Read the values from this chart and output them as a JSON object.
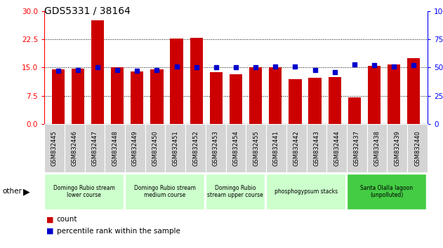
{
  "title": "GDS5331 / 38164",
  "samples": [
    "GSM832445",
    "GSM832446",
    "GSM832447",
    "GSM832448",
    "GSM832449",
    "GSM832450",
    "GSM832451",
    "GSM832452",
    "GSM832453",
    "GSM832454",
    "GSM832455",
    "GSM832441",
    "GSM832442",
    "GSM832443",
    "GSM832444",
    "GSM832437",
    "GSM832438",
    "GSM832439",
    "GSM832440"
  ],
  "counts": [
    14.5,
    14.8,
    27.5,
    15.0,
    14.0,
    14.5,
    22.8,
    22.9,
    13.8,
    13.3,
    15.0,
    15.0,
    12.0,
    12.2,
    12.5,
    7.0,
    15.5,
    15.8,
    17.5
  ],
  "percentile": [
    47,
    48,
    50,
    48,
    47,
    48,
    51,
    50,
    50,
    50,
    50,
    51,
    51,
    48,
    46,
    53,
    52,
    51,
    52
  ],
  "left_ylim": [
    0,
    30
  ],
  "right_ylim": [
    0,
    100
  ],
  "left_yticks": [
    0,
    7.5,
    15,
    22.5,
    30
  ],
  "right_yticks": [
    0,
    25,
    50,
    75,
    100
  ],
  "bar_color": "#cc0000",
  "dot_color": "#0000cc",
  "groups": [
    {
      "label": "Domingo Rubio stream\nlower course",
      "start": 0,
      "end": 3,
      "color": "#ccffcc"
    },
    {
      "label": "Domingo Rubio stream\nmedium course",
      "start": 4,
      "end": 7,
      "color": "#ccffcc"
    },
    {
      "label": "Domingo Rubio\nstream upper course",
      "start": 8,
      "end": 10,
      "color": "#ccffcc"
    },
    {
      "label": "phosphogypsum stacks",
      "start": 11,
      "end": 14,
      "color": "#ccffcc"
    },
    {
      "label": "Santa Olalla lagoon\n(unpolluted)",
      "start": 15,
      "end": 18,
      "color": "#44cc44"
    }
  ],
  "other_label": "other",
  "legend_count_label": "count",
  "legend_pct_label": "percentile rank within the sample",
  "bg_color": "#ffffff",
  "tick_bg_color": "#d4d4d4",
  "tick_border_color": "#aaaaaa"
}
